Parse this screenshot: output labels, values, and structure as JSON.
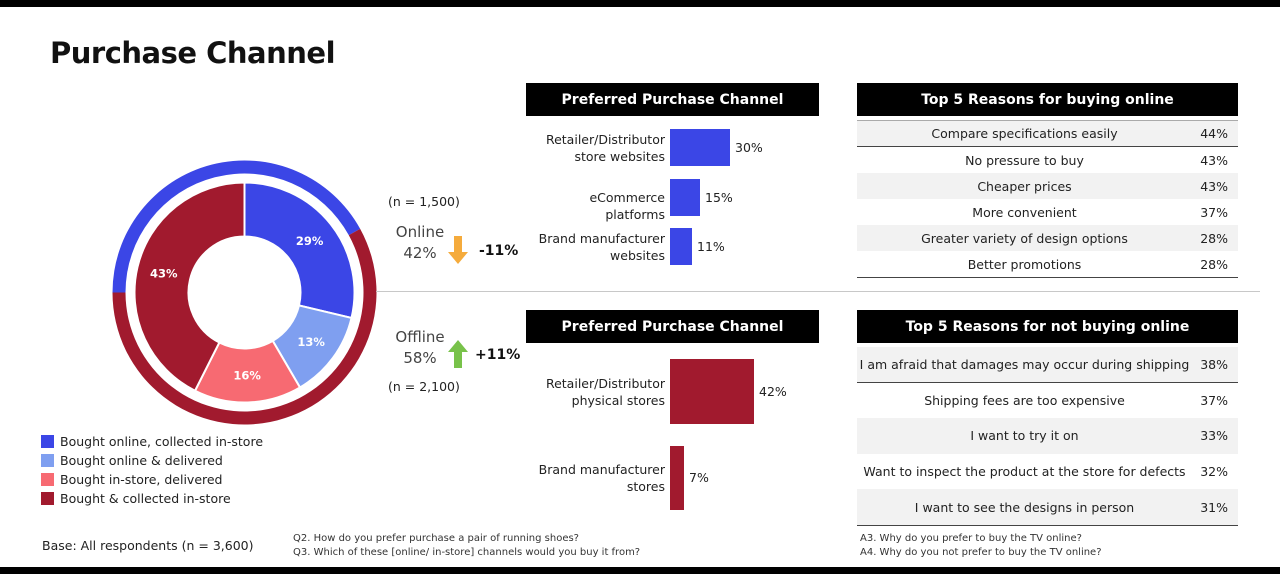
{
  "title": "Purchase Channel",
  "legend": [
    {
      "label": "Bought online, collected in-store",
      "color": "#3b46e6"
    },
    {
      "label": "Bought online & delivered",
      "color": "#7f9ff0"
    },
    {
      "label": "Bought in-store, delivered",
      "color": "#f76a72"
    },
    {
      "label": "Bought & collected in-store",
      "color": "#a11a2e"
    }
  ],
  "online": {
    "n_label": "(n = 1,500)",
    "name": "Online",
    "pct": "42%",
    "change": "-11%",
    "arrow": "down-arrow",
    "arrow_color": "#f5ab3c"
  },
  "offline": {
    "n_label": "(n = 2,100)",
    "name": "Offline",
    "pct": "58%",
    "change": "+11%",
    "arrow": "up-arrow",
    "arrow_color": "#78c24a"
  },
  "preferred_online": {
    "header": "Preferred Purchase Channel"
  },
  "preferred_offline": {
    "header": "Preferred Purchase Channel"
  },
  "reasons_online": {
    "header": "Top 5 Reasons for buying online",
    "rows": [
      {
        "reason": "Compare specifications easily",
        "pct": "44%"
      },
      {
        "reason": "No pressure to buy",
        "pct": "43%"
      },
      {
        "reason": "Cheaper prices",
        "pct": "43%"
      },
      {
        "reason": "More convenient",
        "pct": "37%"
      },
      {
        "reason": "Greater variety of design options",
        "pct": "28%"
      },
      {
        "reason": "Better promotions",
        "pct": "28%"
      }
    ]
  },
  "reasons_offline": {
    "header": "Top 5 Reasons for not buying online",
    "rows": [
      {
        "reason": "I am afraid that damages may occur during shipping",
        "pct": "38%"
      },
      {
        "reason": "Shipping fees are too expensive",
        "pct": "37%"
      },
      {
        "reason": "I want to try it on",
        "pct": "33%"
      },
      {
        "reason": "Want to inspect the product at the store for defects",
        "pct": "32%"
      },
      {
        "reason": "I want to see the designs in person",
        "pct": "31%"
      }
    ]
  },
  "base": "Base: All respondents (n = 3,600)",
  "notes_mid": [
    "Q2. How do you prefer purchase a pair of running shoes?",
    "Q3. Which of these [online/ in-store] channels would you buy it from?"
  ],
  "notes_right": [
    "A3. Why do you prefer to buy the TV online?",
    "A4. Why do you not prefer to buy the TV online?"
  ],
  "chart_data": [
    {
      "type": "pie",
      "categories": [
        "Bought online, collected in-store",
        "Bought online & delivered",
        "Bought in-store, delivered",
        "Bought & collected in-store"
      ],
      "values": [
        29,
        13,
        16,
        43
      ],
      "labels": [
        "29%",
        "13%",
        "16%",
        "43%"
      ],
      "colors": [
        "#3b46e6",
        "#7f9ff0",
        "#f76a72",
        "#a11a2e"
      ],
      "outer_ring": [
        {
          "name": "Online",
          "value": 42,
          "color": "#3b46e6"
        },
        {
          "name": "Offline",
          "value": 58,
          "color": "#a11a2e"
        }
      ]
    },
    {
      "type": "bar",
      "title": "Preferred Purchase Channel",
      "categories": [
        "Retailer/Distributor store websites",
        "eCommerce platforms",
        "Brand manufacturer websites"
      ],
      "category_lines": [
        [
          "Retailer/Distributor",
          "store websites"
        ],
        [
          "eCommerce platforms"
        ],
        [
          "Brand manufacturer",
          "websites"
        ]
      ],
      "values": [
        30,
        15,
        11
      ],
      "labels": [
        "30%",
        "15%",
        "11%"
      ],
      "color": "#3b46e6"
    },
    {
      "type": "bar",
      "title": "Preferred Purchase Channel",
      "categories": [
        "Retailer/Distributor physical stores",
        "Brand manufacturer stores"
      ],
      "category_lines": [
        [
          "Retailer/Distributor",
          "physical stores"
        ],
        [
          "Brand manufacturer",
          "stores"
        ]
      ],
      "values": [
        42,
        7
      ],
      "labels": [
        "42%",
        "7%"
      ],
      "color": "#a11a2e"
    }
  ]
}
